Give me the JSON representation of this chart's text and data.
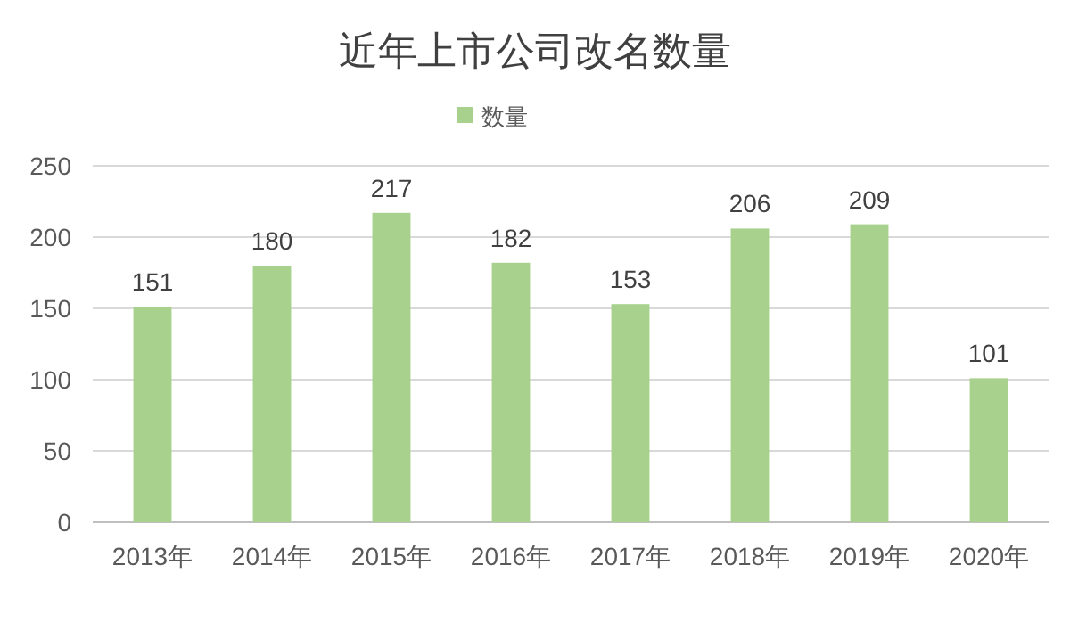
{
  "chart_data": {
    "type": "bar",
    "title": "近年上市公司改名数量",
    "categories": [
      "2013年",
      "2014年",
      "2015年",
      "2016年",
      "2017年",
      "2018年",
      "2019年",
      "2020年"
    ],
    "series": [
      {
        "name": "数量",
        "color": "#a9d18e",
        "values": [
          151,
          180,
          217,
          182,
          153,
          206,
          209,
          101
        ]
      }
    ],
    "ylim": [
      0,
      250
    ],
    "yticks": [
      0,
      50,
      100,
      150,
      200,
      250
    ],
    "grid": "y",
    "legend": "top",
    "data_labels": true
  }
}
